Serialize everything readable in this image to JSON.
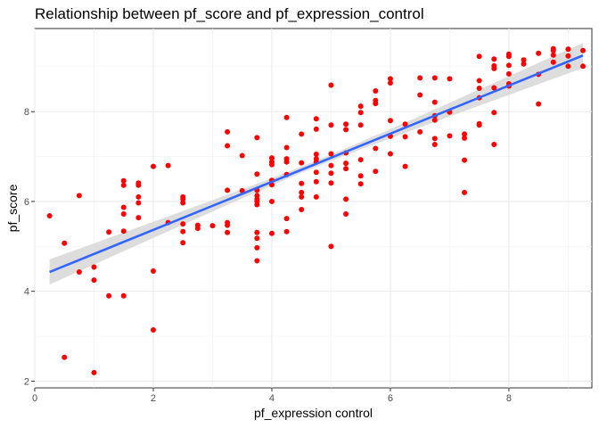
{
  "chart_data": {
    "type": "scatter",
    "title": "Relationship between pf_score and pf_expression_control",
    "xlabel": "pf_expression control",
    "ylabel": "pf_score",
    "xlim": [
      0,
      9.4
    ],
    "ylim": [
      1.85,
      9.85
    ],
    "x_ticks": [
      0,
      2,
      4,
      6,
      8
    ],
    "y_ticks": [
      2,
      4,
      6,
      8
    ],
    "grid": true,
    "point_color": "#ff0000",
    "fit_line_color": "#3366ff",
    "ribbon_color": "#d9d9d9",
    "fit": {
      "type": "linear",
      "x_start": 0.25,
      "x_end": 9.25,
      "y_start": 4.43,
      "y_end": 9.25,
      "ci_halfwidth_edge": 0.28,
      "ci_halfwidth_center": 0.07
    },
    "points": [
      {
        "x": 0.25,
        "y": 5.68
      },
      {
        "x": 0.5,
        "y": 5.07
      },
      {
        "x": 0.5,
        "y": 2.53
      },
      {
        "x": 0.75,
        "y": 6.13
      },
      {
        "x": 0.75,
        "y": 4.43
      },
      {
        "x": 1.0,
        "y": 4.54
      },
      {
        "x": 1.0,
        "y": 4.25
      },
      {
        "x": 1.0,
        "y": 2.19
      },
      {
        "x": 1.25,
        "y": 5.32
      },
      {
        "x": 1.25,
        "y": 3.9
      },
      {
        "x": 1.5,
        "y": 6.46
      },
      {
        "x": 1.5,
        "y": 6.36
      },
      {
        "x": 1.5,
        "y": 5.87
      },
      {
        "x": 1.5,
        "y": 5.72
      },
      {
        "x": 1.5,
        "y": 5.34
      },
      {
        "x": 1.5,
        "y": 3.9
      },
      {
        "x": 1.75,
        "y": 6.41
      },
      {
        "x": 1.75,
        "y": 6.36
      },
      {
        "x": 1.75,
        "y": 6.1
      },
      {
        "x": 1.75,
        "y": 5.97
      },
      {
        "x": 1.75,
        "y": 5.64
      },
      {
        "x": 2.0,
        "y": 6.78
      },
      {
        "x": 2.0,
        "y": 4.45
      },
      {
        "x": 2.0,
        "y": 3.14
      },
      {
        "x": 2.25,
        "y": 6.8
      },
      {
        "x": 2.25,
        "y": 5.53
      },
      {
        "x": 2.5,
        "y": 6.1
      },
      {
        "x": 2.5,
        "y": 6.05
      },
      {
        "x": 2.5,
        "y": 5.97
      },
      {
        "x": 2.5,
        "y": 5.5
      },
      {
        "x": 2.5,
        "y": 5.33
      },
      {
        "x": 2.5,
        "y": 5.08
      },
      {
        "x": 2.75,
        "y": 5.47
      },
      {
        "x": 2.75,
        "y": 5.4
      },
      {
        "x": 3.0,
        "y": 5.46
      },
      {
        "x": 3.25,
        "y": 7.55
      },
      {
        "x": 3.25,
        "y": 7.24
      },
      {
        "x": 3.25,
        "y": 6.25
      },
      {
        "x": 3.25,
        "y": 5.53
      },
      {
        "x": 3.25,
        "y": 5.47
      },
      {
        "x": 3.25,
        "y": 5.31
      },
      {
        "x": 3.5,
        "y": 7.02
      },
      {
        "x": 3.5,
        "y": 6.24
      },
      {
        "x": 3.75,
        "y": 7.42
      },
      {
        "x": 3.75,
        "y": 6.61
      },
      {
        "x": 3.75,
        "y": 6.25
      },
      {
        "x": 3.75,
        "y": 6.13
      },
      {
        "x": 3.75,
        "y": 6.05
      },
      {
        "x": 3.75,
        "y": 6.0
      },
      {
        "x": 3.75,
        "y": 5.93
      },
      {
        "x": 3.75,
        "y": 5.31
      },
      {
        "x": 3.75,
        "y": 5.18
      },
      {
        "x": 3.75,
        "y": 4.97
      },
      {
        "x": 3.75,
        "y": 4.68
      },
      {
        "x": 4.0,
        "y": 6.97
      },
      {
        "x": 4.0,
        "y": 6.88
      },
      {
        "x": 4.0,
        "y": 6.82
      },
      {
        "x": 4.0,
        "y": 6.47
      },
      {
        "x": 4.0,
        "y": 6.37
      },
      {
        "x": 4.0,
        "y": 6.0
      },
      {
        "x": 4.0,
        "y": 5.29
      },
      {
        "x": 4.25,
        "y": 7.87
      },
      {
        "x": 4.25,
        "y": 7.2
      },
      {
        "x": 4.25,
        "y": 6.95
      },
      {
        "x": 4.25,
        "y": 6.88
      },
      {
        "x": 4.25,
        "y": 6.6
      },
      {
        "x": 4.25,
        "y": 5.62
      },
      {
        "x": 4.25,
        "y": 5.33
      },
      {
        "x": 4.5,
        "y": 7.5
      },
      {
        "x": 4.5,
        "y": 6.86
      },
      {
        "x": 4.5,
        "y": 6.4
      },
      {
        "x": 4.5,
        "y": 6.2
      },
      {
        "x": 4.5,
        "y": 6.1
      },
      {
        "x": 4.5,
        "y": 5.82
      },
      {
        "x": 4.75,
        "y": 7.84
      },
      {
        "x": 4.75,
        "y": 7.61
      },
      {
        "x": 4.75,
        "y": 7.05
      },
      {
        "x": 4.75,
        "y": 6.95
      },
      {
        "x": 4.75,
        "y": 6.88
      },
      {
        "x": 4.75,
        "y": 6.65
      },
      {
        "x": 4.75,
        "y": 6.44
      },
      {
        "x": 4.75,
        "y": 6.1
      },
      {
        "x": 5.0,
        "y": 8.59
      },
      {
        "x": 5.0,
        "y": 7.7
      },
      {
        "x": 5.0,
        "y": 7.06
      },
      {
        "x": 5.0,
        "y": 6.8
      },
      {
        "x": 5.0,
        "y": 6.63
      },
      {
        "x": 5.0,
        "y": 6.41
      },
      {
        "x": 5.0,
        "y": 5.0
      },
      {
        "x": 5.25,
        "y": 7.72
      },
      {
        "x": 5.25,
        "y": 7.6
      },
      {
        "x": 5.25,
        "y": 7.08
      },
      {
        "x": 5.25,
        "y": 6.85
      },
      {
        "x": 5.25,
        "y": 6.73
      },
      {
        "x": 5.25,
        "y": 6.05
      },
      {
        "x": 5.25,
        "y": 5.72
      },
      {
        "x": 5.5,
        "y": 8.12
      },
      {
        "x": 5.5,
        "y": 7.98
      },
      {
        "x": 5.5,
        "y": 7.7
      },
      {
        "x": 5.5,
        "y": 6.93
      },
      {
        "x": 5.5,
        "y": 6.57
      },
      {
        "x": 5.5,
        "y": 6.39
      },
      {
        "x": 5.75,
        "y": 8.46
      },
      {
        "x": 5.75,
        "y": 8.25
      },
      {
        "x": 5.75,
        "y": 8.18
      },
      {
        "x": 5.75,
        "y": 7.18
      },
      {
        "x": 5.75,
        "y": 6.67
      },
      {
        "x": 6.0,
        "y": 8.73
      },
      {
        "x": 6.0,
        "y": 8.64
      },
      {
        "x": 6.0,
        "y": 7.8
      },
      {
        "x": 6.0,
        "y": 7.45
      },
      {
        "x": 6.0,
        "y": 7.06
      },
      {
        "x": 6.25,
        "y": 7.72
      },
      {
        "x": 6.25,
        "y": 7.44
      },
      {
        "x": 6.25,
        "y": 6.78
      },
      {
        "x": 6.5,
        "y": 8.75
      },
      {
        "x": 6.5,
        "y": 8.37
      },
      {
        "x": 6.5,
        "y": 7.55
      },
      {
        "x": 6.75,
        "y": 8.75
      },
      {
        "x": 6.75,
        "y": 8.21
      },
      {
        "x": 6.75,
        "y": 7.91
      },
      {
        "x": 6.75,
        "y": 7.81
      },
      {
        "x": 6.75,
        "y": 7.4
      },
      {
        "x": 6.75,
        "y": 7.27
      },
      {
        "x": 7.0,
        "y": 8.73
      },
      {
        "x": 7.0,
        "y": 7.99
      },
      {
        "x": 7.0,
        "y": 7.46
      },
      {
        "x": 7.25,
        "y": 7.5
      },
      {
        "x": 7.25,
        "y": 7.41
      },
      {
        "x": 7.25,
        "y": 6.92
      },
      {
        "x": 7.25,
        "y": 6.2
      },
      {
        "x": 7.5,
        "y": 9.23
      },
      {
        "x": 7.5,
        "y": 8.69
      },
      {
        "x": 7.5,
        "y": 8.52
      },
      {
        "x": 7.5,
        "y": 8.31
      },
      {
        "x": 7.5,
        "y": 7.73
      },
      {
        "x": 7.5,
        "y": 7.7
      },
      {
        "x": 7.75,
        "y": 9.17
      },
      {
        "x": 7.75,
        "y": 9.02
      },
      {
        "x": 7.75,
        "y": 8.96
      },
      {
        "x": 7.75,
        "y": 8.53
      },
      {
        "x": 7.75,
        "y": 7.98
      },
      {
        "x": 7.75,
        "y": 7.27
      },
      {
        "x": 8.0,
        "y": 9.28
      },
      {
        "x": 8.0,
        "y": 9.23
      },
      {
        "x": 8.0,
        "y": 9.03
      },
      {
        "x": 8.0,
        "y": 8.84
      },
      {
        "x": 8.0,
        "y": 8.62
      },
      {
        "x": 8.0,
        "y": 8.57
      },
      {
        "x": 8.25,
        "y": 9.15
      },
      {
        "x": 8.25,
        "y": 9.06
      },
      {
        "x": 8.5,
        "y": 9.3
      },
      {
        "x": 8.5,
        "y": 8.83
      },
      {
        "x": 8.5,
        "y": 8.17
      },
      {
        "x": 8.75,
        "y": 9.4
      },
      {
        "x": 8.75,
        "y": 9.36
      },
      {
        "x": 8.75,
        "y": 9.26
      },
      {
        "x": 8.75,
        "y": 9.1
      },
      {
        "x": 9.0,
        "y": 9.39
      },
      {
        "x": 9.0,
        "y": 9.24
      },
      {
        "x": 9.0,
        "y": 9.01
      },
      {
        "x": 9.25,
        "y": 9.36
      },
      {
        "x": 9.25,
        "y": 9.01
      }
    ]
  }
}
